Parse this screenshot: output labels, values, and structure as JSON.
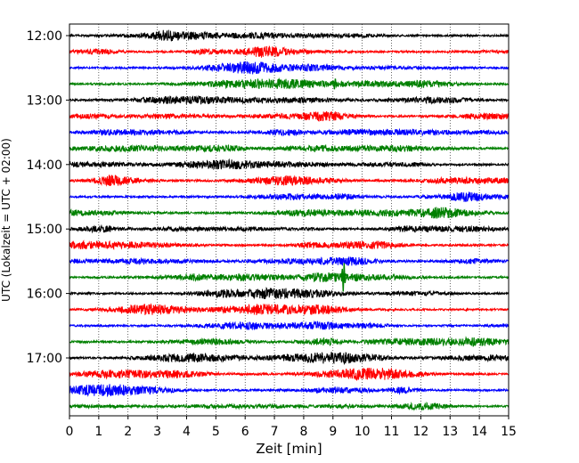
{
  "chart_data": {
    "type": "line",
    "title": "",
    "xlabel": "Zeit  [min]",
    "ylabel": "UTC (Lokalzeit = UTC + 02:00)",
    "xlim": [
      0,
      15
    ],
    "x_ticks": [
      "0",
      "1",
      "2",
      "3",
      "4",
      "5",
      "6",
      "7",
      "8",
      "9",
      "10",
      "11",
      "12",
      "13",
      "14",
      "15"
    ],
    "y_tick_labels": [
      "12:00",
      "13:00",
      "14:00",
      "15:00",
      "16:00",
      "17:00"
    ],
    "grid": "vertical-dotted",
    "trace_colors": [
      "#000000",
      "#ff0000",
      "#0000ff",
      "#008000"
    ],
    "traces": [
      {
        "start": "12:00",
        "color": "#000000"
      },
      {
        "start": "12:15",
        "color": "#ff0000"
      },
      {
        "start": "12:30",
        "color": "#0000ff"
      },
      {
        "start": "12:45",
        "color": "#008000"
      },
      {
        "start": "13:00",
        "color": "#000000"
      },
      {
        "start": "13:15",
        "color": "#ff0000"
      },
      {
        "start": "13:30",
        "color": "#0000ff"
      },
      {
        "start": "13:45",
        "color": "#008000"
      },
      {
        "start": "14:00",
        "color": "#000000"
      },
      {
        "start": "14:15",
        "color": "#ff0000"
      },
      {
        "start": "14:30",
        "color": "#0000ff"
      },
      {
        "start": "14:45",
        "color": "#008000"
      },
      {
        "start": "15:00",
        "color": "#000000"
      },
      {
        "start": "15:15",
        "color": "#ff0000"
      },
      {
        "start": "15:30",
        "color": "#0000ff"
      },
      {
        "start": "15:45",
        "color": "#008000"
      },
      {
        "start": "16:00",
        "color": "#000000"
      },
      {
        "start": "16:15",
        "color": "#ff0000"
      },
      {
        "start": "16:30",
        "color": "#0000ff"
      },
      {
        "start": "16:45",
        "color": "#008000"
      },
      {
        "start": "17:00",
        "color": "#000000"
      },
      {
        "start": "17:15",
        "color": "#ff0000"
      },
      {
        "start": "17:30",
        "color": "#0000ff"
      },
      {
        "start": "17:45",
        "color": "#008000"
      }
    ],
    "events": [
      {
        "trace": "12:45",
        "minute": 9.05
      },
      {
        "trace": "15:45",
        "minute": 9.35
      }
    ]
  }
}
